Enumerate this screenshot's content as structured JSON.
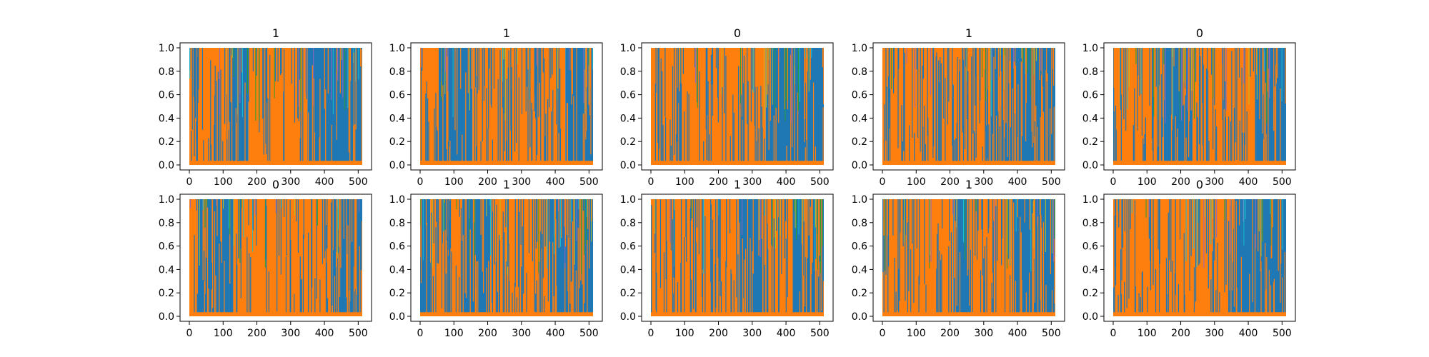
{
  "figure": {
    "colors": {
      "class_0": "#1f77b4",
      "class_1": "#ff7f0e",
      "minor_1": "#17becf",
      "minor_2": "#bcbd22",
      "minor_3": "#2ca02c",
      "minor_4": "#9467bd"
    }
  },
  "chart_data": [
    {
      "type": "area",
      "title": "1",
      "xlim": [
        0,
        512
      ],
      "ylim": [
        0,
        1
      ],
      "xticks": [
        0,
        100,
        200,
        300,
        400,
        500
      ],
      "yticks": [
        0.0,
        0.2,
        0.4,
        0.6,
        0.8,
        1.0
      ],
      "x_tick_labels": [
        "0",
        "100",
        "200",
        "300",
        "400",
        "500"
      ],
      "y_tick_labels": [
        "0.0",
        "0.2",
        "0.4",
        "0.6",
        "0.8",
        "1.0"
      ],
      "dominant_segments": [
        {
          "x": [
            0,
            110
          ],
          "class": 1
        },
        {
          "x": [
            110,
            175
          ],
          "class": 0
        },
        {
          "x": [
            175,
            350
          ],
          "class": 1
        },
        {
          "x": [
            350,
            512
          ],
          "class": 0
        }
      ]
    },
    {
      "type": "area",
      "title": "1",
      "xlim": [
        0,
        512
      ],
      "ylim": [
        0,
        1
      ],
      "xticks": [
        0,
        100,
        200,
        300,
        400,
        500
      ],
      "yticks": [
        0.0,
        0.2,
        0.4,
        0.6,
        0.8,
        1.0
      ],
      "x_tick_labels": [
        "0",
        "100",
        "200",
        "300",
        "400",
        "500"
      ],
      "y_tick_labels": [
        "0.0",
        "0.2",
        "0.4",
        "0.6",
        "0.8",
        "1.0"
      ],
      "dominant_segments": [
        {
          "x": [
            0,
            55
          ],
          "class": 1
        },
        {
          "x": [
            55,
            155
          ],
          "class": 0
        },
        {
          "x": [
            155,
            430
          ],
          "class": 1
        },
        {
          "x": [
            430,
            512
          ],
          "class": 0
        }
      ]
    },
    {
      "type": "area",
      "title": "0",
      "xlim": [
        0,
        512
      ],
      "ylim": [
        0,
        1
      ],
      "xticks": [
        0,
        100,
        200,
        300,
        400,
        500
      ],
      "yticks": [
        0.0,
        0.2,
        0.4,
        0.6,
        0.8,
        1.0
      ],
      "x_tick_labels": [
        "0",
        "100",
        "200",
        "300",
        "400",
        "500"
      ],
      "y_tick_labels": [
        "0.0",
        "0.2",
        "0.4",
        "0.6",
        "0.8",
        "1.0"
      ],
      "dominant_segments": [
        {
          "x": [
            0,
            340
          ],
          "class": 1
        },
        {
          "x": [
            340,
            512
          ],
          "class": 0
        }
      ]
    },
    {
      "type": "area",
      "title": "1",
      "xlim": [
        0,
        512
      ],
      "ylim": [
        0,
        1
      ],
      "xticks": [
        0,
        100,
        200,
        300,
        400,
        500
      ],
      "yticks": [
        0.0,
        0.2,
        0.4,
        0.6,
        0.8,
        1.0
      ],
      "x_tick_labels": [
        "0",
        "100",
        "200",
        "300",
        "400",
        "500"
      ],
      "y_tick_labels": [
        "0.0",
        "0.2",
        "0.4",
        "0.6",
        "0.8",
        "1.0"
      ],
      "dominant_segments": [
        {
          "x": [
            0,
            320
          ],
          "class": 1
        },
        {
          "x": [
            320,
            512
          ],
          "class": 0
        }
      ]
    },
    {
      "type": "area",
      "title": "0",
      "xlim": [
        0,
        512
      ],
      "ylim": [
        0,
        1
      ],
      "xticks": [
        0,
        100,
        200,
        300,
        400,
        500
      ],
      "yticks": [
        0.0,
        0.2,
        0.4,
        0.6,
        0.8,
        1.0
      ],
      "x_tick_labels": [
        "0",
        "100",
        "200",
        "300",
        "400",
        "500"
      ],
      "y_tick_labels": [
        "0.0",
        "0.2",
        "0.4",
        "0.6",
        "0.8",
        "1.0"
      ],
      "dominant_segments": [
        {
          "x": [
            0,
            150
          ],
          "class": 1
        },
        {
          "x": [
            150,
            235
          ],
          "class": 0
        },
        {
          "x": [
            235,
            420
          ],
          "class": 1
        },
        {
          "x": [
            420,
            512
          ],
          "class": 0
        }
      ]
    },
    {
      "type": "area",
      "title": "0",
      "xlim": [
        0,
        512
      ],
      "ylim": [
        0,
        1
      ],
      "xticks": [
        0,
        100,
        200,
        300,
        400,
        500
      ],
      "yticks": [
        0.0,
        0.2,
        0.4,
        0.6,
        0.8,
        1.0
      ],
      "x_tick_labels": [
        "0",
        "100",
        "200",
        "300",
        "400",
        "500"
      ],
      "y_tick_labels": [
        "0.0",
        "0.2",
        "0.4",
        "0.6",
        "0.8",
        "1.0"
      ],
      "dominant_segments": [
        {
          "x": [
            0,
            20
          ],
          "class": 1
        },
        {
          "x": [
            20,
            130
          ],
          "class": 0
        },
        {
          "x": [
            130,
            425
          ],
          "class": 1
        },
        {
          "x": [
            425,
            512
          ],
          "class": 0
        }
      ]
    },
    {
      "type": "area",
      "title": "1",
      "xlim": [
        0,
        512
      ],
      "ylim": [
        0,
        1
      ],
      "xticks": [
        0,
        100,
        200,
        300,
        400,
        500
      ],
      "yticks": [
        0.0,
        0.2,
        0.4,
        0.6,
        0.8,
        1.0
      ],
      "x_tick_labels": [
        "0",
        "100",
        "200",
        "300",
        "400",
        "500"
      ],
      "y_tick_labels": [
        "0.0",
        "0.2",
        "0.4",
        "0.6",
        "0.8",
        "1.0"
      ],
      "dominant_segments": [
        {
          "x": [
            0,
            30
          ],
          "class": 0
        },
        {
          "x": [
            30,
            125
          ],
          "class": 1
        },
        {
          "x": [
            125,
            210
          ],
          "class": 0
        },
        {
          "x": [
            210,
            385
          ],
          "class": 1
        },
        {
          "x": [
            385,
            512
          ],
          "class": 0
        }
      ]
    },
    {
      "type": "area",
      "title": "1",
      "xlim": [
        0,
        512
      ],
      "ylim": [
        0,
        1
      ],
      "xticks": [
        0,
        100,
        200,
        300,
        400,
        500
      ],
      "yticks": [
        0.0,
        0.2,
        0.4,
        0.6,
        0.8,
        1.0
      ],
      "x_tick_labels": [
        "0",
        "100",
        "200",
        "300",
        "400",
        "500"
      ],
      "y_tick_labels": [
        "0.0",
        "0.2",
        "0.4",
        "0.6",
        "0.8",
        "1.0"
      ],
      "dominant_segments": [
        {
          "x": [
            0,
            260
          ],
          "class": 1
        },
        {
          "x": [
            260,
            330
          ],
          "class": 0
        },
        {
          "x": [
            330,
            420
          ],
          "class": 1
        },
        {
          "x": [
            420,
            512
          ],
          "class": 0
        }
      ]
    },
    {
      "type": "area",
      "title": "1",
      "xlim": [
        0,
        512
      ],
      "ylim": [
        0,
        1
      ],
      "xticks": [
        0,
        100,
        200,
        300,
        400,
        500
      ],
      "yticks": [
        0.0,
        0.2,
        0.4,
        0.6,
        0.8,
        1.0
      ],
      "x_tick_labels": [
        "0",
        "100",
        "200",
        "300",
        "400",
        "500"
      ],
      "y_tick_labels": [
        "0.0",
        "0.2",
        "0.4",
        "0.6",
        "0.8",
        "1.0"
      ],
      "dominant_segments": [
        {
          "x": [
            0,
            210
          ],
          "class": 1
        },
        {
          "x": [
            210,
            260
          ],
          "class": 0
        },
        {
          "x": [
            260,
            385
          ],
          "class": 1
        },
        {
          "x": [
            385,
            512
          ],
          "class": 0
        }
      ]
    },
    {
      "type": "area",
      "title": "0",
      "xlim": [
        0,
        512
      ],
      "ylim": [
        0,
        1
      ],
      "xticks": [
        0,
        100,
        200,
        300,
        400,
        500
      ],
      "yticks": [
        0.0,
        0.2,
        0.4,
        0.6,
        0.8,
        1.0
      ],
      "x_tick_labels": [
        "0",
        "100",
        "200",
        "300",
        "400",
        "500"
      ],
      "y_tick_labels": [
        "0.0",
        "0.2",
        "0.4",
        "0.6",
        "0.8",
        "1.0"
      ],
      "dominant_segments": [
        {
          "x": [
            0,
            350
          ],
          "class": 1
        },
        {
          "x": [
            350,
            512
          ],
          "class": 0
        }
      ]
    }
  ]
}
